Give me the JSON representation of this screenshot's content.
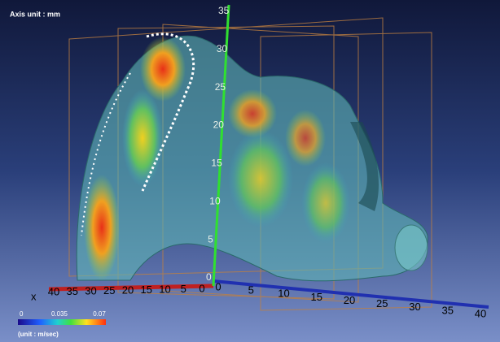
{
  "header": {
    "title": "Axis unit : mm"
  },
  "axes": {
    "x": {
      "name": "x",
      "ticks": [
        40,
        35,
        30,
        25,
        20,
        15,
        10,
        5,
        0
      ]
    },
    "y": {
      "ticks": [
        0,
        5,
        10,
        15,
        20,
        25,
        30,
        35,
        40
      ]
    },
    "z": {
      "ticks": [
        0,
        5,
        10,
        15,
        20,
        25,
        30,
        35
      ]
    }
  },
  "colorbar": {
    "ticks": [
      0,
      0.035,
      0.07
    ],
    "unit": "(unit : m/sec)"
  }
}
